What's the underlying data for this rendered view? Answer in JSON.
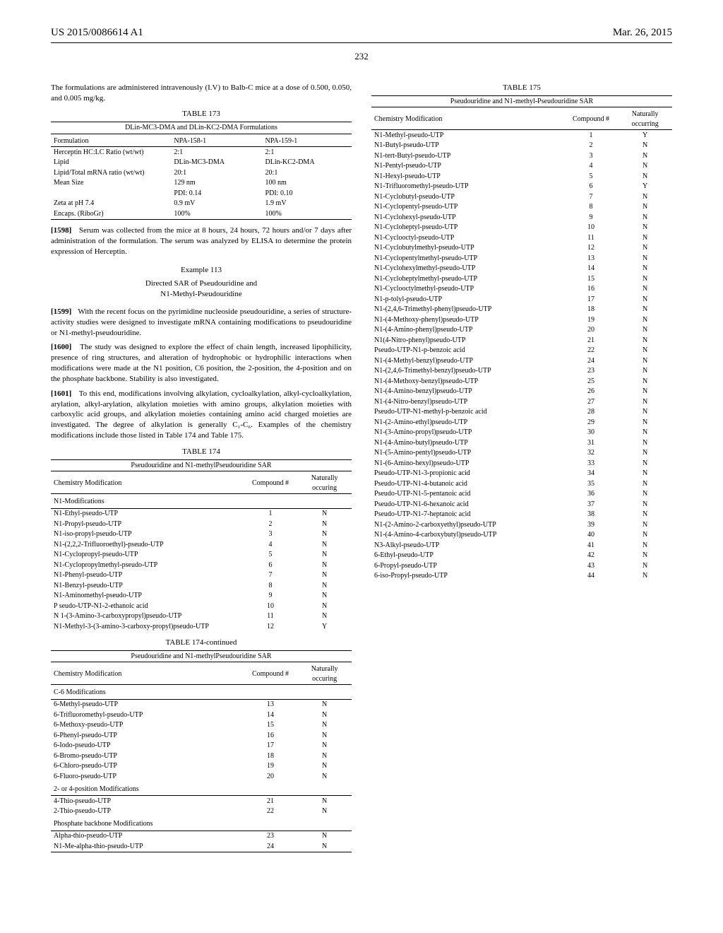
{
  "header": {
    "left": "US 2015/0086614 A1",
    "right": "Mar. 26, 2015"
  },
  "page_number": "232",
  "intro_para": "The formulations are administered intravenously (I.V) to Balb-C mice at a dose of 0.500, 0.050, and 0.005 mg/kg.",
  "table173": {
    "caption": "TABLE 173",
    "subcaption": "DLin-MC3-DMA and DLin-KC2-DMA Formulations",
    "headers": [
      "Formulation",
      "NPA-158-1",
      "NPA-159-1"
    ],
    "rows": [
      [
        "Herceptin HC:LC Ratio (wt/wt)",
        "2:1",
        "2:1"
      ],
      [
        "Lipid",
        "DLin-MC3-DMA",
        "DLin-KC2-DMA"
      ],
      [
        "Lipid/Total mRNA ratio (wt/wt)",
        "20:1",
        "20:1"
      ],
      [
        "Mean Size",
        "129 nm",
        "100 nm"
      ],
      [
        "",
        "PDI: 0.14",
        "PDI: 0.10"
      ],
      [
        "Zeta at pH 7.4",
        "0.9 mV",
        "1.9 mV"
      ],
      [
        "Encaps. (RiboGr)",
        "100%",
        "100%"
      ]
    ]
  },
  "para1598_num": "[1598]",
  "para1598": "Serum was collected from the mice at 8 hours, 24 hours, 72 hours and/or 7 days after administration of the formulation. The serum was analyzed by ELISA to determine the protein expression of Herceptin.",
  "example": {
    "num": "Example 113",
    "title1": "Directed SAR of Pseudouridine and",
    "title2": "N1-Methyl-Pseudouridine"
  },
  "para1599_num": "[1599]",
  "para1599": "With the recent focus on the pyrimidine nucleoside pseudouridine, a series of structure-activity studies were designed to investigate mRNA containing modifications to pseudouridine or N1-methyl-pseudouridine.",
  "para1600_num": "[1600]",
  "para1600": "The study was designed to explore the effect of chain length, increased lipophilicity, presence of ring structures, and alteration of hydrophobic or hydrophilic interactions when modifications were made at the N1 position, C6 position, the 2-position, the 4-position and on the phosphate backbone. Stability is also investigated.",
  "para1601_num": "[1601]",
  "para1601": "To this end, modifications involving alkylation, cycloalkylation, alkyl-cycloalkylation, arylation, alkyl-arylation, alkylation moieties with amino groups, alkylation moieties with carboxylic acid groups, and alkylation moieties containing amino acid charged moieties are investigated. The degree of alkylation is generally C₁-C₆. Examples of the chemistry modifications include those listed in Table 174 and Table 175.",
  "table174": {
    "caption": "TABLE 174",
    "caption_cont": "TABLE 174-continued",
    "subcaption": "Pseudouridine and N1-methylPseudouridine SAR",
    "headers": [
      "Chemistry Modification",
      "Compound #",
      "Naturally occuring"
    ],
    "group_n1": "N1-Modifications",
    "rows_n1": [
      [
        "N1-Ethyl-pseudo-UTP",
        "1",
        "N"
      ],
      [
        "N1-Propyl-pseudo-UTP",
        "2",
        "N"
      ],
      [
        "N1-iso-propyl-pseudo-UTP",
        "3",
        "N"
      ],
      [
        "N1-(2,2,2-Trifluoroethyl)-pseudo-UTP",
        "4",
        "N"
      ],
      [
        "N1-Cyclopropyl-pseudo-UTP",
        "5",
        "N"
      ],
      [
        "N1-Cyclopropylmethyl-pseudo-UTP",
        "6",
        "N"
      ],
      [
        "N1-Phenyl-pseudo-UTP",
        "7",
        "N"
      ],
      [
        "N1-Benzyl-pseudo-UTP",
        "8",
        "N"
      ],
      [
        "N1-Aminomethyl-pseudo-UTP",
        "9",
        "N"
      ],
      [
        "P seudo-UTP-N1-2-ethanoic acid",
        "10",
        "N"
      ],
      [
        "N 1-(3-Amino-3-carboxypropyl)pseudo-UTP",
        "11",
        "N"
      ],
      [
        "N1-Methyl-3-(3-amino-3-carboxy-propyl)pseudo-UTP",
        "12",
        "Y"
      ]
    ],
    "group_c6": "C-6 Modifications",
    "rows_c6": [
      [
        "6-Methyl-pseudo-UTP",
        "13",
        "N"
      ],
      [
        "6-Trifluoromethyl-pseudo-UTP",
        "14",
        "N"
      ],
      [
        "6-Methoxy-pseudo-UTP",
        "15",
        "N"
      ],
      [
        "6-Phenyl-pseudo-UTP",
        "16",
        "N"
      ],
      [
        "6-Iodo-pseudo-UTP",
        "17",
        "N"
      ],
      [
        "6-Bromo-pseudo-UTP",
        "18",
        "N"
      ],
      [
        "6-Chloro-pseudo-UTP",
        "19",
        "N"
      ],
      [
        "6-Fluoro-pseudo-UTP",
        "20",
        "N"
      ]
    ],
    "group_24": "2- or 4-position Modifications",
    "rows_24": [
      [
        "4-Thio-pseudo-UTP",
        "21",
        "N"
      ],
      [
        "2-Thio-pseudo-UTP",
        "22",
        "N"
      ]
    ],
    "group_ph": "Phosphate backbone Modifications",
    "rows_ph": [
      [
        "Alpha-thio-pseudo-UTP",
        "23",
        "N"
      ],
      [
        "N1-Me-alpha-thio-pseudo-UTP",
        "24",
        "N"
      ]
    ]
  },
  "table175": {
    "caption": "TABLE 175",
    "subcaption": "Pseudouridine and N1-methyl-Pseudouridine SAR",
    "headers": [
      "Chemistry Modification",
      "Compound #",
      "Naturally occurring"
    ],
    "rows": [
      [
        "N1-Methyl-pseudo-UTP",
        "1",
        "Y"
      ],
      [
        "N1-Butyl-pseudo-UTP",
        "2",
        "N"
      ],
      [
        "N1-tert-Butyl-pseudo-UTP",
        "3",
        "N"
      ],
      [
        "N1-Pentyl-pseudo-UTP",
        "4",
        "N"
      ],
      [
        "N1-Hexyl-pseudo-UTP",
        "5",
        "N"
      ],
      [
        "N1-Trifluoromethyl-pseudo-UTP",
        "6",
        "Y"
      ],
      [
        "N1-Cyclobutyl-pseudo-UTP",
        "7",
        "N"
      ],
      [
        "N1-Cyclopentyl-pseudo-UTP",
        "8",
        "N"
      ],
      [
        "N1-Cyclohexyl-pseudo-UTP",
        "9",
        "N"
      ],
      [
        "N1-Cycloheptyl-pseudo-UTP",
        "10",
        "N"
      ],
      [
        "N1-Cyclooctyl-pseudo-UTP",
        "11",
        "N"
      ],
      [
        "N1-Cyclobutylmethyl-pseudo-UTP",
        "12",
        "N"
      ],
      [
        "N1-Cyclopentylmethyl-pseudo-UTP",
        "13",
        "N"
      ],
      [
        "N1-Cyclohexylmethyl-pseudo-UTP",
        "14",
        "N"
      ],
      [
        "N1-Cycloheptylmethyl-pseudo-UTP",
        "15",
        "N"
      ],
      [
        "N1-Cyclooctylmethyl-pseudo-UTP",
        "16",
        "N"
      ],
      [
        "N1-p-tolyl-pseudo-UTP",
        "17",
        "N"
      ],
      [
        "N1-(2,4,6-Trimethyl-phenyl)pseudo-UTP",
        "18",
        "N"
      ],
      [
        "N1-(4-Methoxy-phenyl)pseudo-UTP",
        "19",
        "N"
      ],
      [
        "N1-(4-Amino-phenyl)pseudo-UTP",
        "20",
        "N"
      ],
      [
        "N1(4-Nitro-phenyl)pseudo-UTP",
        "21",
        "N"
      ],
      [
        "Pseudo-UTP-N1-p-benzoic acid",
        "22",
        "N"
      ],
      [
        "N1-(4-Methyl-benzyl)pseudo-UTP",
        "24",
        "N"
      ],
      [
        "N1-(2,4,6-Trimethyl-benzyl)pseudo-UTP",
        "23",
        "N"
      ],
      [
        "N1-(4-Methoxy-benzyl)pseudo-UTP",
        "25",
        "N"
      ],
      [
        "N1-(4-Amino-benzyl)pseudo-UTP",
        "26",
        "N"
      ],
      [
        "N1-(4-Nitro-benzyl)pseudo-UTP",
        "27",
        "N"
      ],
      [
        "Pseudo-UTP-N1-methyl-p-benzoic acid",
        "28",
        "N"
      ],
      [
        "N1-(2-Amino-ethyl)pseudo-UTP",
        "29",
        "N"
      ],
      [
        "N1-(3-Amino-propyl)pseudo-UTP",
        "30",
        "N"
      ],
      [
        "N1-(4-Amino-butyl)pseudo-UTP",
        "31",
        "N"
      ],
      [
        "N1-(5-Amino-pentyl)pseudo-UTP",
        "32",
        "N"
      ],
      [
        "N1-(6-Amino-hexyl)pseudo-UTP",
        "33",
        "N"
      ],
      [
        "Pseudo-UTP-N1-3-propionic acid",
        "34",
        "N"
      ],
      [
        "Pseudo-UTP-N1-4-butanoic acid",
        "35",
        "N"
      ],
      [
        "Pseudo-UTP-N1-5-pentanoic acid",
        "36",
        "N"
      ],
      [
        "Pseudo-UTP-N1-6-hexanoic acid",
        "37",
        "N"
      ],
      [
        "Pseudo-UTP-N1-7-heptanoic acid",
        "38",
        "N"
      ],
      [
        "N1-(2-Amino-2-carboxyethyl)pseudo-UTP",
        "39",
        "N"
      ],
      [
        "N1-(4-Amino-4-carboxybutyl)pseudo-UTP",
        "40",
        "N"
      ],
      [
        "N3-Alkyl-pseudo-UTP",
        "41",
        "N"
      ],
      [
        "6-Ethyl-pseudo-UTP",
        "42",
        "N"
      ],
      [
        "6-Propyl-pseudo-UTP",
        "43",
        "N"
      ],
      [
        "6-iso-Propyl-pseudo-UTP",
        "44",
        "N"
      ]
    ]
  }
}
